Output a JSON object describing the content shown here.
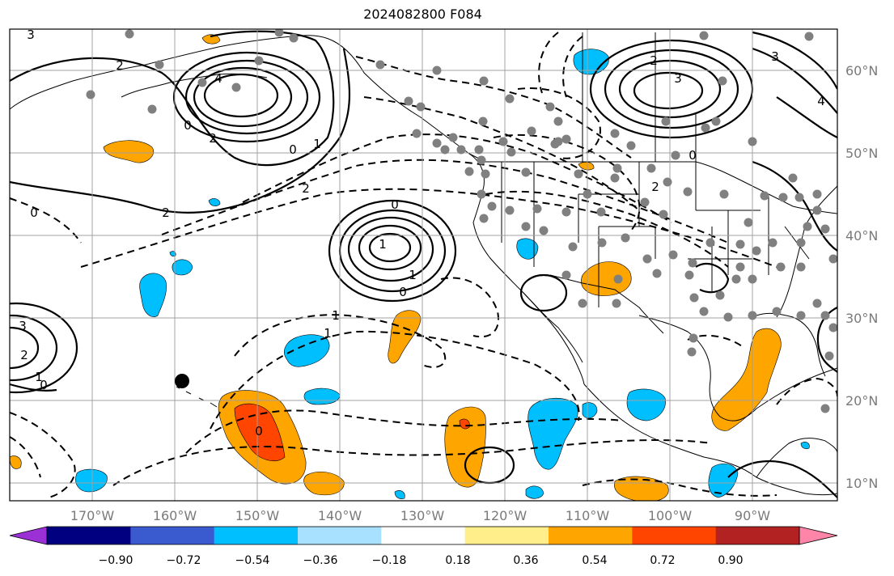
{
  "title": "2024082800 F084",
  "map": {
    "projection": "lat-lon",
    "lon_range_deg": [
      -180,
      -80
    ],
    "lat_range_deg": [
      8,
      65
    ],
    "grid": true,
    "lon_ticks": [
      "170°W",
      "160°W",
      "150°W",
      "140°W",
      "130°W",
      "120°W",
      "110°W",
      "100°W",
      "90°W"
    ],
    "lat_ticks": [
      "60°N",
      "50°N",
      "40°N",
      "30°N",
      "20°N",
      "10°N"
    ],
    "contour_labels": [
      "3",
      "2",
      "4",
      "0",
      "2",
      "2",
      "0",
      "1",
      "2",
      "3",
      "4",
      "2",
      "0",
      "2",
      "3",
      "0",
      "0",
      "1",
      "1",
      "0",
      "1",
      "1",
      "0",
      "0",
      "3",
      "2",
      "1"
    ],
    "marker_legend": {
      "grey_dots": "stations",
      "black_dot": "highlighted point"
    }
  },
  "colorbar": {
    "colors": [
      "#9b30d6",
      "#000080",
      "#3a5bd0",
      "#00bfff",
      "#a8e0ff",
      "#ffffff",
      "#ffee8a",
      "#ffa500",
      "#ff4500",
      "#b22222",
      "#ff85a8"
    ],
    "tick_labels": [
      "−0.90",
      "−0.72",
      "−0.54",
      "−0.36",
      "−0.18",
      "0.18",
      "0.36",
      "0.54",
      "0.72",
      "0.90"
    ],
    "extend": "both"
  }
}
